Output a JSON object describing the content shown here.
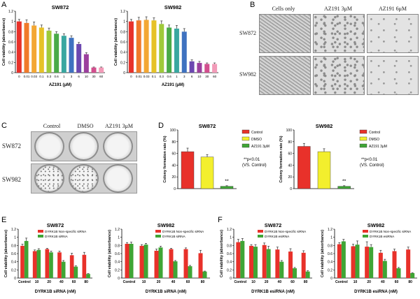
{
  "panel_letters": {
    "a": "A",
    "b": "B",
    "c": "C",
    "d": "D",
    "e": "E",
    "f": "F"
  },
  "micrographs": {
    "columns": [
      "Cells only",
      "AZ191 3μM",
      "AZ191 6μM"
    ],
    "rows": [
      "SW872",
      "SW982"
    ]
  },
  "colony_plates": {
    "columns": [
      "Control",
      "DMSO",
      "AZ191 3μM"
    ],
    "rows": [
      "SW872",
      "SW982"
    ]
  },
  "colors": {
    "rainbow": [
      "#e8312a",
      "#f07a2a",
      "#f3a733",
      "#e6c227",
      "#9fca3a",
      "#4aaa48",
      "#39a7a0",
      "#3f72c0",
      "#6c48b0",
      "#9b3f9d",
      "#d24f8e",
      "#f29bb8"
    ],
    "red": "#e8312a",
    "yellow": "#f3ef2d",
    "green": "#3fa535",
    "error": "#444444"
  },
  "chart_data": [
    {
      "id": "A1",
      "type": "bar",
      "title": "SW872",
      "ylabel": "Cell viability (absorbance)",
      "xlabel": "AZ191 (μM)",
      "ylim": [
        0,
        1.2
      ],
      "yticks": [
        0,
        0.2,
        0.4,
        0.6,
        0.8,
        1.0,
        1.2
      ],
      "categories": [
        "0",
        "0.01",
        "0.03",
        "0.1",
        "0.3",
        "0.6",
        "1",
        "3",
        "6",
        "10",
        "30",
        "60"
      ],
      "values": [
        1.0,
        0.97,
        0.92,
        0.88,
        0.82,
        0.76,
        0.72,
        0.68,
        0.56,
        0.36,
        0.1,
        0.1
      ],
      "errors": [
        0.04,
        0.06,
        0.07,
        0.05,
        0.05,
        0.04,
        0.04,
        0.04,
        0.03,
        0.03,
        0.01,
        0.01
      ],
      "annotations": []
    },
    {
      "id": "A2",
      "type": "bar",
      "title": "SW982",
      "ylabel": "Cell viability (absorbance)",
      "xlabel": "AZ191 (μM)",
      "ylim": [
        0,
        1.2
      ],
      "yticks": [
        0,
        0.2,
        0.4,
        0.6,
        0.8,
        1.0,
        1.2
      ],
      "categories": [
        "0",
        "0.01",
        "0.03",
        "0.1",
        "0.3",
        "0.6",
        "1",
        "3",
        "6",
        "10",
        "30",
        "60"
      ],
      "values": [
        1.0,
        1.02,
        1.03,
        1.02,
        0.95,
        0.88,
        0.86,
        0.8,
        0.22,
        0.19,
        0.17,
        0.17
      ],
      "errors": [
        0.04,
        0.06,
        0.06,
        0.05,
        0.06,
        0.05,
        0.06,
        0.06,
        0.03,
        0.03,
        0.02,
        0.02
      ],
      "annotations": []
    },
    {
      "id": "D1",
      "type": "bar",
      "title": "SW872",
      "ylabel": "Colony formation rate (%)",
      "xlabel": "",
      "ylim": [
        0,
        100
      ],
      "yticks": [
        0,
        20,
        40,
        60,
        80,
        100
      ],
      "categories": [
        "Control",
        "DMSO",
        "AZ191 3μM"
      ],
      "values": [
        63,
        54,
        4
      ],
      "errors": [
        6,
        4,
        1
      ],
      "legend": [
        "Control",
        "DMSO",
        "AZ191 3μM"
      ],
      "annotations": [
        "**p<0.01",
        "(VS. Control)",
        "**"
      ]
    },
    {
      "id": "D2",
      "type": "bar",
      "title": "SW982",
      "ylabel": "Colony formation rate (%)",
      "xlabel": "",
      "ylim": [
        0,
        100
      ],
      "yticks": [
        0,
        20,
        40,
        60,
        80,
        100
      ],
      "categories": [
        "Control",
        "DMSO",
        "AZ191 3μM"
      ],
      "values": [
        72,
        63,
        4
      ],
      "errors": [
        5,
        5,
        1
      ],
      "legend": [
        "Control",
        "DMSO",
        "AZ191 3μM"
      ],
      "annotations": [
        "**p<0.01",
        "(VS. Control)",
        "**"
      ]
    },
    {
      "id": "E1",
      "type": "bar",
      "title": "SW872",
      "ylabel": "Cell viability (absorbance)",
      "xlabel": "DYRK1B siRNA (nM)",
      "ylim": [
        0,
        1.2
      ],
      "yticks": [
        0,
        0.2,
        0.4,
        0.6,
        0.8,
        1.0,
        1.2
      ],
      "categories": [
        "Control",
        "10",
        "20",
        "40",
        "60",
        "80"
      ],
      "series": [
        {
          "name": "DYRK1B Non-specific siRNA",
          "values": [
            0.79,
            0.66,
            0.71,
            0.63,
            0.56,
            0.57
          ],
          "errors": [
            0.04,
            0.03,
            0.02,
            0.03,
            0.05,
            0.06
          ]
        },
        {
          "name": "DYRK1B siRNA",
          "values": [
            0.91,
            0.69,
            0.63,
            0.4,
            0.28,
            0.1
          ],
          "errors": [
            0.07,
            0.03,
            0.03,
            0.03,
            0.02,
            0.01
          ]
        }
      ],
      "annotations": []
    },
    {
      "id": "E2",
      "type": "bar",
      "title": "SW982",
      "ylabel": "Cell viability (absorbance)",
      "xlabel": "DYRK1B siRNA (nM)",
      "ylim": [
        0,
        1.2
      ],
      "yticks": [
        0,
        0.2,
        0.4,
        0.6,
        0.8,
        1.0,
        1.2
      ],
      "categories": [
        "Control",
        "10",
        "20",
        "40",
        "60",
        "80"
      ],
      "series": [
        {
          "name": "DYRK1B Non-specific siRNA",
          "values": [
            0.84,
            0.79,
            0.67,
            0.71,
            0.71,
            0.61
          ],
          "errors": [
            0.03,
            0.03,
            0.04,
            0.02,
            0.03,
            0.07
          ]
        },
        {
          "name": "DYRK1B siRNA",
          "values": [
            0.84,
            0.82,
            0.75,
            0.41,
            0.29,
            0.16
          ],
          "errors": [
            0.04,
            0.03,
            0.03,
            0.02,
            0.02,
            0.01
          ]
        }
      ],
      "annotations": []
    },
    {
      "id": "F1",
      "type": "bar",
      "title": "SW872",
      "ylabel": "Cell viability (absorbance)",
      "xlabel": "DYRK1B esiRNA (nM)",
      "ylim": [
        0,
        1.2
      ],
      "yticks": [
        0,
        0.2,
        0.4,
        0.6,
        0.8,
        1.0,
        1.2
      ],
      "categories": [
        "Control",
        "10",
        "20",
        "40",
        "60",
        "80"
      ],
      "series": [
        {
          "name": "DYRK1B Non-specific siRNA",
          "values": [
            0.88,
            0.79,
            0.81,
            0.7,
            0.65,
            0.62
          ],
          "errors": [
            0.07,
            0.03,
            0.05,
            0.06,
            0.07,
            0.05
          ]
        },
        {
          "name": "DYRK1B esiRNA",
          "values": [
            0.91,
            0.77,
            0.71,
            0.4,
            0.24,
            0.16
          ],
          "errors": [
            0.06,
            0.05,
            0.07,
            0.03,
            0.02,
            0.02
          ]
        }
      ],
      "annotations": []
    },
    {
      "id": "F2",
      "type": "bar",
      "title": "SW982",
      "ylabel": "Cell viability (absorbance)",
      "xlabel": "DYRK1B esiRNA (nM)",
      "ylim": [
        0,
        1.2
      ],
      "yticks": [
        0,
        0.2,
        0.4,
        0.6,
        0.8,
        1.0,
        1.2
      ],
      "categories": [
        "Control",
        "10",
        "20",
        "40",
        "60",
        "80"
      ],
      "series": [
        {
          "name": "DYRK1B Non-specific siRNA",
          "values": [
            0.83,
            0.78,
            0.77,
            0.62,
            0.66,
            0.7
          ],
          "errors": [
            0.04,
            0.05,
            0.12,
            0.06,
            0.05,
            0.06
          ]
        },
        {
          "name": "DYRK1B esiRNA",
          "values": [
            0.9,
            0.82,
            0.76,
            0.42,
            0.24,
            0.12
          ],
          "errors": [
            0.05,
            0.09,
            0.06,
            0.04,
            0.02,
            0.01
          ]
        }
      ],
      "annotations": []
    }
  ]
}
